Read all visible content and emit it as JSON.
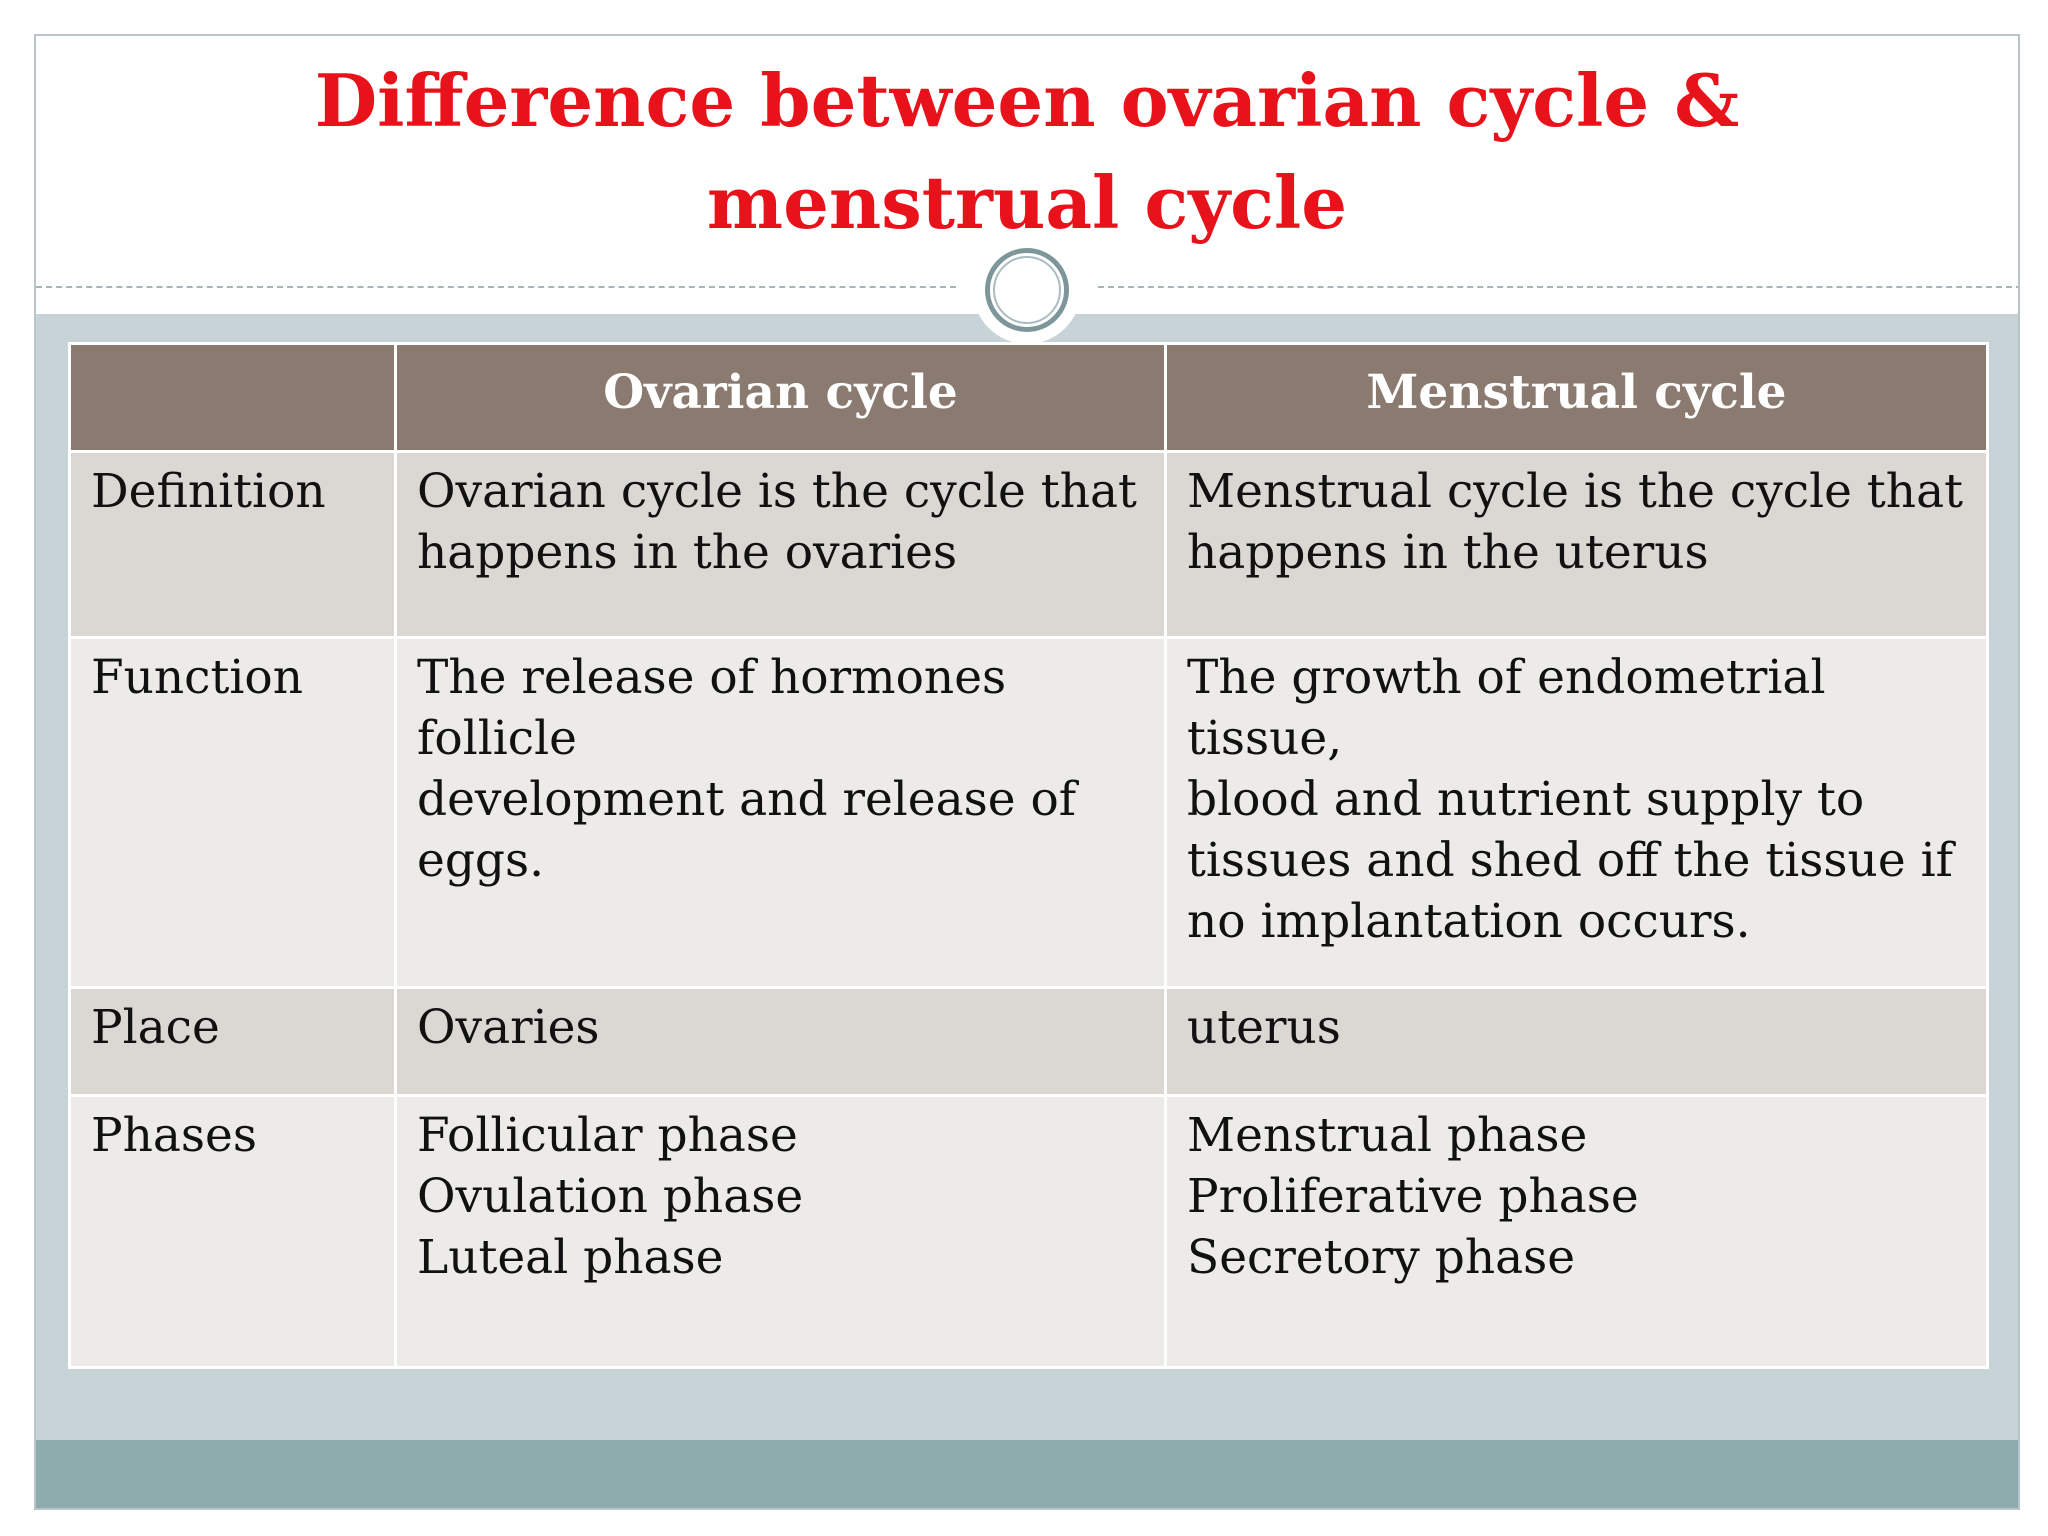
{
  "slide": {
    "title_line1": "Difference between ovarian cycle &",
    "title_line2": "menstrual cycle",
    "title_color": "#e8131a",
    "header_color": "#8a7a6f",
    "footer_color": "#8eacad"
  },
  "table": {
    "headers": [
      "",
      "Ovarian cycle",
      "Menstrual cycle"
    ],
    "rows": [
      {
        "label": "Definition",
        "ovarian": [
          "Ovarian cycle is the cycle that",
          "happens in the ovaries"
        ],
        "menstrual": [
          "Menstrual cycle is the cycle that",
          "happens in the uterus"
        ]
      },
      {
        "label": "Function",
        "ovarian": [
          "The release of hormones follicle",
          "development and release of",
          "eggs."
        ],
        "menstrual": [
          "The growth of endometrial tissue,",
          "blood and nutrient supply to",
          "tissues and shed off the tissue if",
          "no implantation occurs."
        ]
      },
      {
        "label": "Place",
        "ovarian": [
          "Ovaries"
        ],
        "menstrual": [
          "uterus"
        ]
      },
      {
        "label": "Phases",
        "ovarian": [
          "Follicular phase",
          "Ovulation phase",
          "Luteal phase"
        ],
        "menstrual": [
          "Menstrual phase",
          "Proliferative phase",
          "Secretory phase"
        ]
      }
    ]
  }
}
